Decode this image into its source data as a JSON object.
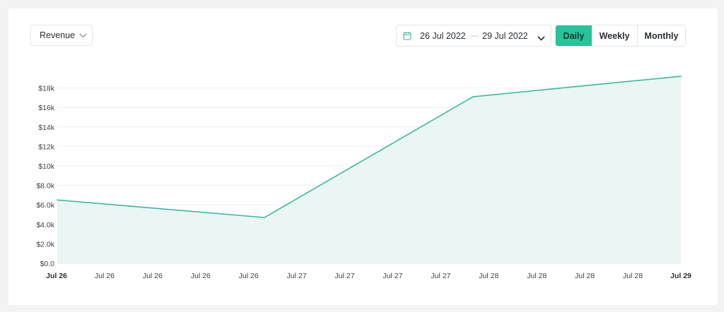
{
  "controls": {
    "metric_label": "Revenue",
    "date_start": "26 Jul 2022",
    "date_separator": "—",
    "date_end": "29 Jul 2022",
    "granularity": [
      {
        "label": "Daily",
        "active": true
      },
      {
        "label": "Weekly",
        "active": false
      },
      {
        "label": "Monthly",
        "active": false
      }
    ],
    "accent_color": "#25c49a",
    "icons": {
      "metric": "chevron-down-icon",
      "calendar": "calendar-icon",
      "date_dropdown": "chevron-down-icon"
    }
  },
  "chart_data": {
    "type": "area",
    "title": "",
    "xlabel": "",
    "ylabel": "",
    "ylim": [
      0,
      19000
    ],
    "yticks": [
      "$0.0",
      "$2.0k",
      "$4.0k",
      "$6.0k",
      "$8.0k",
      "$10k",
      "$12k",
      "$14k",
      "$16k",
      "$18k"
    ],
    "ytick_values": [
      0,
      2000,
      4000,
      6000,
      8000,
      10000,
      12000,
      14000,
      16000,
      18000
    ],
    "xticks": [
      "Jul 26",
      "Jul 26",
      "Jul 26",
      "Jul 26",
      "Jul 26",
      "Jul 27",
      "Jul 27",
      "Jul 27",
      "Jul 27",
      "Jul 28",
      "Jul 28",
      "Jul 28",
      "Jul 28",
      "Jul 29"
    ],
    "xtick_bold": [
      true,
      false,
      false,
      false,
      false,
      false,
      false,
      false,
      false,
      false,
      false,
      false,
      false,
      true
    ],
    "x": [
      "2022-07-26",
      "2022-07-27",
      "2022-07-28",
      "2022-07-29"
    ],
    "series": [
      {
        "values": [
          6500,
          4700,
          17100,
          19200
        ]
      }
    ],
    "line_color": "#3fb8a3",
    "fill_color": "#e9f6f3",
    "grid": true,
    "legend": false
  }
}
